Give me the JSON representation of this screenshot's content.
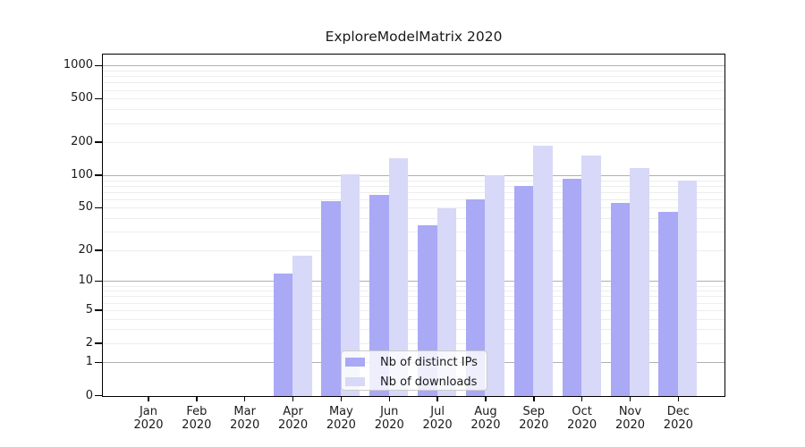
{
  "chart_data": {
    "type": "bar",
    "title": "ExploreModelMatrix 2020",
    "categories": [
      "Jan",
      "Feb",
      "Mar",
      "Apr",
      "May",
      "Jun",
      "Jul",
      "Aug",
      "Sep",
      "Oct",
      "Nov",
      "Dec"
    ],
    "category_year": "2020",
    "series": [
      {
        "name": "Nb of distinct IPs",
        "color": "#a9a9f5",
        "values": [
          0,
          0,
          0,
          12,
          58,
          66,
          35,
          60,
          80,
          94,
          56,
          46
        ]
      },
      {
        "name": "Nb of downloads",
        "color": "#d8d8f8",
        "values": [
          0,
          0,
          0,
          18,
          103,
          144,
          50,
          101,
          188,
          152,
          118,
          90
        ]
      }
    ],
    "y_scale": "log1p",
    "ylim": [
      0,
      1250
    ],
    "y_ticks": [
      0,
      1,
      2,
      5,
      10,
      20,
      50,
      100,
      200,
      500,
      1000
    ],
    "y_major_gridlines": [
      1,
      10,
      100,
      1000
    ],
    "y_minor_gridlines": [
      2,
      3,
      4,
      5,
      6,
      7,
      8,
      9,
      20,
      30,
      40,
      50,
      60,
      70,
      80,
      90,
      200,
      300,
      400,
      500,
      600,
      700,
      800,
      900
    ],
    "grid": true,
    "legend_position": "lower-center"
  },
  "colors": {
    "bar_ips": "#a9a9f5",
    "bar_downloads": "#d8d8f8",
    "grid_major": "#b0b0b0",
    "grid_minor": "#ededed",
    "spine": "#000000",
    "text": "#1a1a1a",
    "legend_border": "#cccccc"
  }
}
